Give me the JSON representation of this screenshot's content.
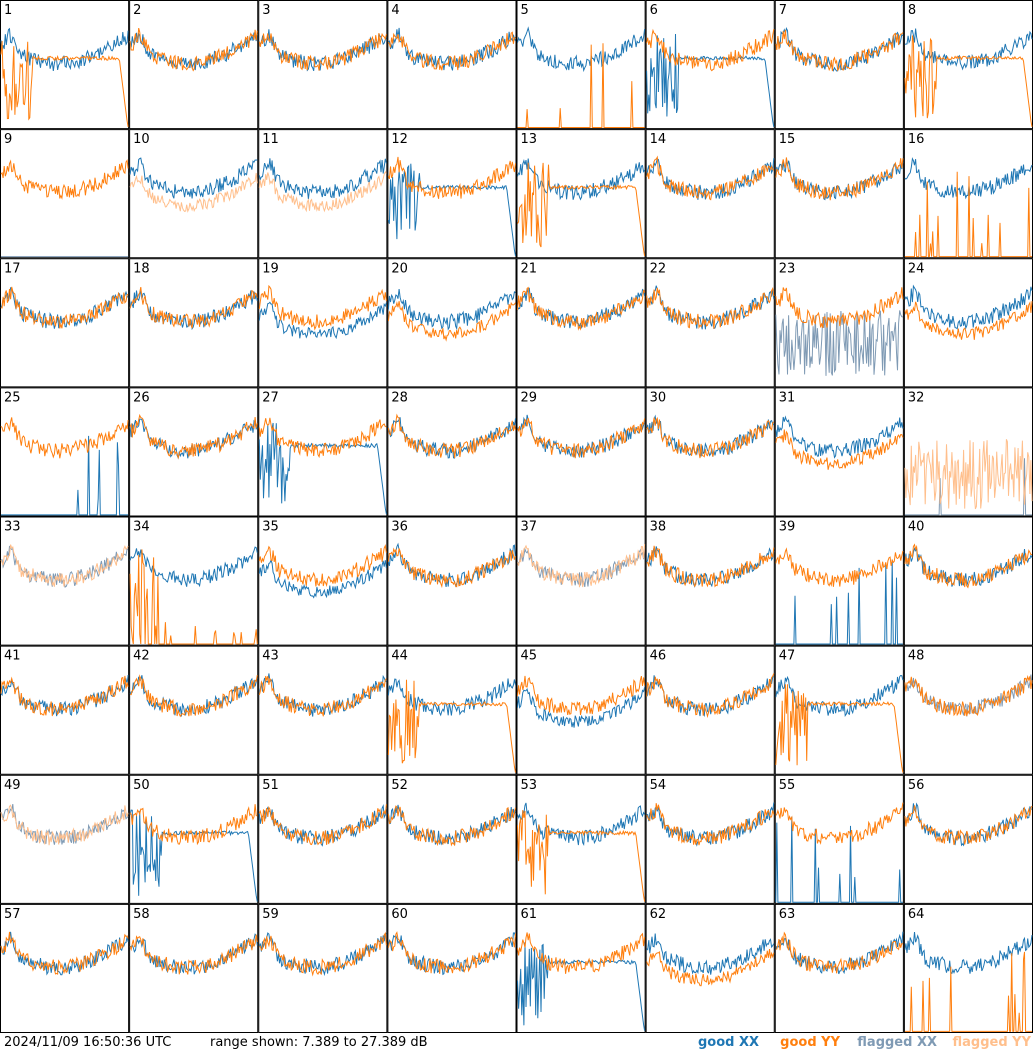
{
  "footer": {
    "timestamp": "2024/11/09 16:50:36 UTC",
    "range_text": "range shown: 7.389 to 27.389 dB"
  },
  "legend": {
    "good_xx": "good XX",
    "good_yy": "good YY",
    "flagged_xx": "flagged XX",
    "flagged_yy": "flagged YY"
  },
  "colors": {
    "good_xx": "#1f77b4",
    "good_yy": "#ff7f0e",
    "flagged_xx": "#7f9ab4",
    "flagged_yy": "#ffbf8c"
  },
  "chart_data": {
    "type": "line",
    "ylim": [
      7.389,
      27.389
    ],
    "grid_rows": 8,
    "grid_cols": 8,
    "panels": [
      {
        "label": "1",
        "xx": "good",
        "yy": "bad"
      },
      {
        "label": "2",
        "xx": "good",
        "yy": "good"
      },
      {
        "label": "3",
        "xx": "good",
        "yy": "good"
      },
      {
        "label": "4",
        "xx": "good",
        "yy": "good"
      },
      {
        "label": "5",
        "xx": "good",
        "yy": "dead"
      },
      {
        "label": "6",
        "xx": "bad",
        "yy": "good"
      },
      {
        "label": "7",
        "xx": "good",
        "yy": "good"
      },
      {
        "label": "8",
        "xx": "good",
        "yy": "bad"
      },
      {
        "label": "9",
        "xx": "flagdead",
        "yy": "good"
      },
      {
        "label": "10",
        "xx": "good",
        "yy": "flaglow"
      },
      {
        "label": "11",
        "xx": "good",
        "yy": "flaglow"
      },
      {
        "label": "12",
        "xx": "bad",
        "yy": "good"
      },
      {
        "label": "13",
        "xx": "good",
        "yy": "bad"
      },
      {
        "label": "14",
        "xx": "good",
        "yy": "good"
      },
      {
        "label": "15",
        "xx": "good",
        "yy": "good"
      },
      {
        "label": "16",
        "xx": "good",
        "yy": "dead"
      },
      {
        "label": "17",
        "xx": "good",
        "yy": "good"
      },
      {
        "label": "18",
        "xx": "good",
        "yy": "good"
      },
      {
        "label": "19",
        "xx": "low",
        "yy": "good"
      },
      {
        "label": "20",
        "xx": "good",
        "yy": "low"
      },
      {
        "label": "21",
        "xx": "good",
        "yy": "good"
      },
      {
        "label": "22",
        "xx": "good",
        "yy": "good"
      },
      {
        "label": "23",
        "xx": "flagnoise",
        "yy": "good"
      },
      {
        "label": "24",
        "xx": "good",
        "yy": "low"
      },
      {
        "label": "25",
        "xx": "dead",
        "yy": "good"
      },
      {
        "label": "26",
        "xx": "good",
        "yy": "good"
      },
      {
        "label": "27",
        "xx": "bad",
        "yy": "good"
      },
      {
        "label": "28",
        "xx": "good",
        "yy": "good"
      },
      {
        "label": "29",
        "xx": "good",
        "yy": "good"
      },
      {
        "label": "30",
        "xx": "good",
        "yy": "good"
      },
      {
        "label": "31",
        "xx": "good",
        "yy": "low"
      },
      {
        "label": "32",
        "xx": "flagdead",
        "yy": "flagnoise"
      },
      {
        "label": "33",
        "xx": "flaggood",
        "yy": "flaggood"
      },
      {
        "label": "34",
        "xx": "good",
        "yy": "noise"
      },
      {
        "label": "35",
        "xx": "low",
        "yy": "good"
      },
      {
        "label": "36",
        "xx": "good",
        "yy": "good"
      },
      {
        "label": "37",
        "xx": "flaggood",
        "yy": "flaggood"
      },
      {
        "label": "38",
        "xx": "good",
        "yy": "good"
      },
      {
        "label": "39",
        "xx": "dead",
        "yy": "good"
      },
      {
        "label": "40",
        "xx": "good",
        "yy": "good"
      },
      {
        "label": "41",
        "xx": "good",
        "yy": "good"
      },
      {
        "label": "42",
        "xx": "good",
        "yy": "good"
      },
      {
        "label": "43",
        "xx": "good",
        "yy": "good"
      },
      {
        "label": "44",
        "xx": "good",
        "yy": "bad"
      },
      {
        "label": "45",
        "xx": "low",
        "yy": "good"
      },
      {
        "label": "46",
        "xx": "good",
        "yy": "good"
      },
      {
        "label": "47",
        "xx": "good",
        "yy": "bad"
      },
      {
        "label": "48",
        "xx": "flaggood",
        "yy": "good"
      },
      {
        "label": "49",
        "xx": "flaggood",
        "yy": "flaggood"
      },
      {
        "label": "50",
        "xx": "bad",
        "yy": "good"
      },
      {
        "label": "51",
        "xx": "good",
        "yy": "good"
      },
      {
        "label": "52",
        "xx": "good",
        "yy": "good"
      },
      {
        "label": "53",
        "xx": "good",
        "yy": "bad"
      },
      {
        "label": "54",
        "xx": "good",
        "yy": "good"
      },
      {
        "label": "55",
        "xx": "dead",
        "yy": "good"
      },
      {
        "label": "56",
        "xx": "good",
        "yy": "good"
      },
      {
        "label": "57",
        "xx": "good",
        "yy": "good"
      },
      {
        "label": "58",
        "xx": "good",
        "yy": "good"
      },
      {
        "label": "59",
        "xx": "good",
        "yy": "good"
      },
      {
        "label": "60",
        "xx": "good",
        "yy": "good"
      },
      {
        "label": "61",
        "xx": "bad",
        "yy": "good"
      },
      {
        "label": "62",
        "xx": "good",
        "yy": "low"
      },
      {
        "label": "63",
        "xx": "good",
        "yy": "good"
      },
      {
        "label": "64",
        "xx": "good",
        "yy": "dead"
      }
    ]
  }
}
